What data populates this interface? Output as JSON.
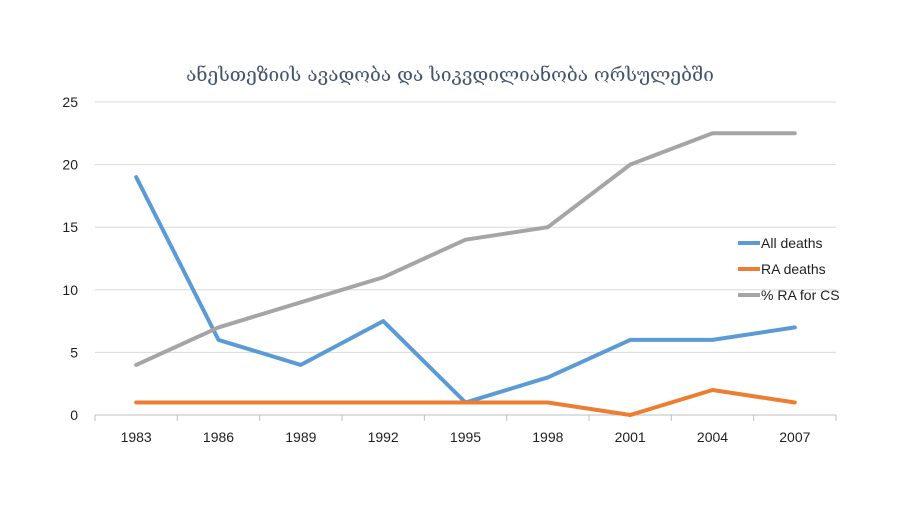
{
  "chart_data": {
    "type": "line",
    "title": "ანესთეზიის ავადობა და სიკვდილიანობა ორსულებში",
    "xlabel": "",
    "ylabel": "",
    "categories": [
      "1983",
      "1986",
      "1989",
      "1992",
      "1995",
      "1998",
      "2001",
      "2004",
      "2007"
    ],
    "ylim": [
      0,
      25
    ],
    "yticks": [
      0,
      5,
      10,
      15,
      20,
      25
    ],
    "grid": true,
    "legend_position": "right",
    "series": [
      {
        "name": "All deaths",
        "color": "#5b9bd5",
        "values": [
          19,
          6,
          4,
          7.5,
          1,
          3,
          6,
          6,
          7
        ]
      },
      {
        "name": "RA deaths",
        "color": "#ed7d31",
        "values": [
          1,
          1,
          1,
          1,
          1,
          1,
          0,
          2,
          1
        ]
      },
      {
        "name": "% RA for CS",
        "color": "#a5a5a5",
        "values": [
          4,
          7,
          9,
          11,
          14,
          15,
          20,
          22.5,
          22.5
        ]
      }
    ]
  }
}
